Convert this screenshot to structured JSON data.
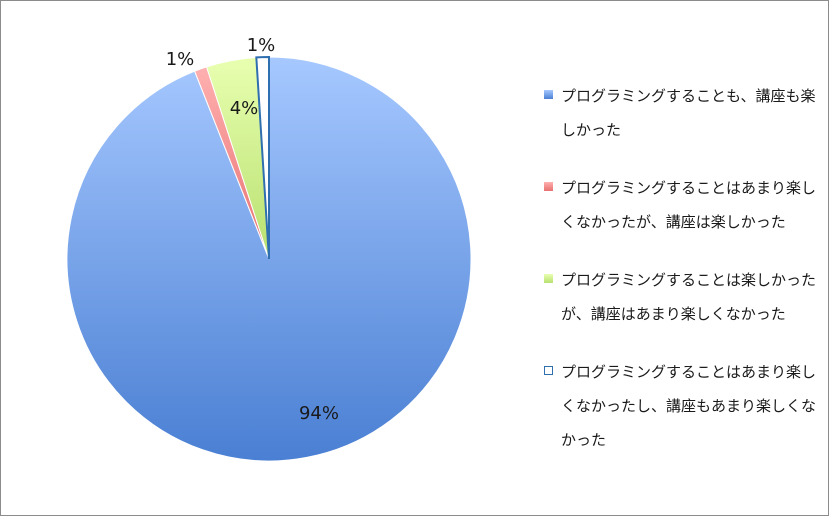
{
  "chart_data": {
    "type": "pie",
    "title": "",
    "start_angle_deg": 0,
    "direction": "clockwise",
    "slices": [
      {
        "label": "プログラミングすることも、講座も楽しかった",
        "value": 94,
        "display": "94%",
        "color": "#5a8fe0"
      },
      {
        "label": "プログラミングすることはあまり楽しくなかったが、講座は楽しかった",
        "value": 1,
        "display": "1%",
        "color": "#f08a8a"
      },
      {
        "label": "プログラミングすることは楽しかったが、講座はあまり楽しくなかった",
        "value": 4,
        "display": "4%",
        "color": "#d2f08a"
      },
      {
        "label": "プログラミングすることはあまり楽しくなかったし、講座もあまり楽しくなかった",
        "value": 1,
        "display": "1%",
        "color": "#ffffff",
        "border": "#2f6fb0"
      }
    ],
    "legend_position": "right"
  }
}
